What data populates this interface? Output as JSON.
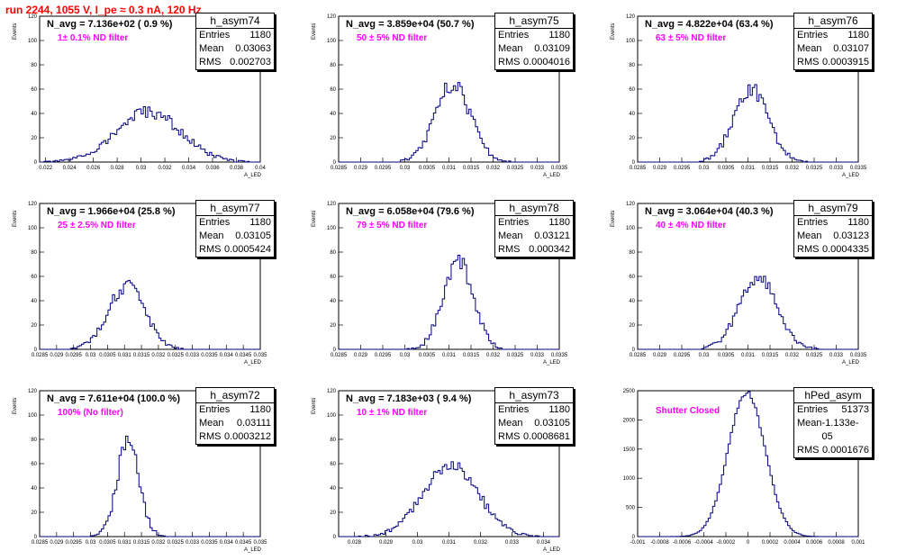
{
  "page_title": "run 2244,  1055 V, I_pe ≈ 0.3 nA, 120 Hz",
  "colors": {
    "hist": "#000080",
    "title": "#ff0000",
    "filter": "#ff00ff"
  },
  "chart_data": [
    {
      "type": "histogram",
      "name": "h_asym74",
      "navg": "N_avg = 7.136e+02 ( 0.9 %)",
      "filter": "1± 0.1% ND filter",
      "stats": {
        "Entries": "1180",
        "Mean": "0.03063",
        "RMS": "0.002703"
      },
      "xlabel": "A_LED",
      "ylabel": "Events",
      "xlim": [
        0.0215,
        0.04
      ],
      "ylim": [
        0,
        120
      ],
      "xticks": [
        "0.022",
        "0.024",
        "0.026",
        "0.028",
        "0.03",
        "0.032",
        "0.034",
        "0.036",
        "0.038",
        "0.04"
      ],
      "xtick_values": [
        0.022,
        0.024,
        0.026,
        0.028,
        0.03,
        0.032,
        0.034,
        0.036,
        0.038,
        0.04
      ],
      "yticks": [
        0,
        20,
        40,
        60,
        80,
        100,
        120
      ],
      "mean": 0.03063,
      "rms": 0.002703,
      "peak": 41
    },
    {
      "type": "histogram",
      "name": "h_asym75",
      "navg": "N_avg = 3.859e+04 (50.7 %)",
      "filter": "50 ± 5% ND filter",
      "stats": {
        "Entries": "1180",
        "Mean": "0.03109",
        "RMS": "0.0004016"
      },
      "xlabel": "A_LED",
      "ylabel": "Events",
      "xlim": [
        0.0285,
        0.0335
      ],
      "ylim": [
        0,
        120
      ],
      "xticks": [
        "0.0285",
        "0.029",
        "0.0295",
        "0.03",
        "0.0305",
        "0.031",
        "0.0315",
        "0.032",
        "0.0325",
        "0.033",
        "0.0335"
      ],
      "xtick_values": [
        0.0285,
        0.029,
        0.0295,
        0.03,
        0.0305,
        0.031,
        0.0315,
        0.032,
        0.0325,
        0.033,
        0.0335
      ],
      "yticks": [
        0,
        20,
        40,
        60,
        80,
        100,
        120
      ],
      "mean": 0.03109,
      "rms": 0.0004016,
      "peak": 64
    },
    {
      "type": "histogram",
      "name": "h_asym76",
      "navg": "N_avg = 4.822e+04 (63.4 %)",
      "filter": "63 ± 5% ND filter",
      "stats": {
        "Entries": "1180",
        "Mean": "0.03107",
        "RMS": "0.0003915"
      },
      "xlabel": "A_LED",
      "ylabel": "Events",
      "xlim": [
        0.0285,
        0.0335
      ],
      "ylim": [
        0,
        120
      ],
      "xticks": [
        "0.0285",
        "0.029",
        "0.0295",
        "0.03",
        "0.0305",
        "0.031",
        "0.0315",
        "0.032",
        "0.0325",
        "0.033",
        "0.0335"
      ],
      "xtick_values": [
        0.0285,
        0.029,
        0.0295,
        0.03,
        0.0305,
        0.031,
        0.0315,
        0.032,
        0.0325,
        0.033,
        0.0335
      ],
      "yticks": [
        0,
        20,
        40,
        60,
        80,
        100,
        120
      ],
      "mean": 0.03107,
      "rms": 0.0003915,
      "peak": 60
    },
    {
      "type": "histogram",
      "name": "h_asym77",
      "navg": "N_avg = 1.966e+04 (25.8 %)",
      "filter": "25 ± 2.5% ND filter",
      "stats": {
        "Entries": "1180",
        "Mean": "0.03105",
        "RMS": "0.0005424"
      },
      "xlabel": "A_LED",
      "ylabel": "Events",
      "xlim": [
        0.0285,
        0.035
      ],
      "ylim": [
        0,
        120
      ],
      "xticks": [
        "0.0285",
        "0.029",
        "0.0295",
        "0.03",
        "0.0305",
        "0.031",
        "0.0315",
        "0.032",
        "0.0325",
        "0.033",
        "0.0335",
        "0.034",
        "0.0345",
        "0.035"
      ],
      "xtick_values": [
        0.0285,
        0.029,
        0.0295,
        0.03,
        0.0305,
        0.031,
        0.0315,
        0.032,
        0.0325,
        0.033,
        0.0335,
        0.034,
        0.0345,
        0.035
      ],
      "yticks": [
        0,
        20,
        40,
        60,
        80,
        100,
        120
      ],
      "mean": 0.03105,
      "rms": 0.0005424,
      "peak": 52
    },
    {
      "type": "histogram",
      "name": "h_asym78",
      "navg": "N_avg = 6.058e+04 (79.6 %)",
      "filter": "79 ± 5% ND filter",
      "stats": {
        "Entries": "1180",
        "Mean": "0.03121",
        "RMS": "0.000342"
      },
      "xlabel": "A_LED",
      "ylabel": "Events",
      "xlim": [
        0.0285,
        0.0335
      ],
      "ylim": [
        0,
        120
      ],
      "xticks": [
        "0.0285",
        "0.029",
        "0.0295",
        "0.03",
        "0.0305",
        "0.031",
        "0.0315",
        "0.032",
        "0.0325",
        "0.033",
        "0.0335"
      ],
      "xtick_values": [
        0.0285,
        0.029,
        0.0295,
        0.03,
        0.0305,
        0.031,
        0.0315,
        0.032,
        0.0325,
        0.033,
        0.0335
      ],
      "yticks": [
        0,
        20,
        40,
        60,
        80,
        100,
        120
      ],
      "mean": 0.03121,
      "rms": 0.000342,
      "peak": 73
    },
    {
      "type": "histogram",
      "name": "h_asym79",
      "navg": "N_avg = 3.064e+04 (40.3 %)",
      "filter": "40 ± 4% ND filter",
      "stats": {
        "Entries": "1180",
        "Mean": "0.03123",
        "RMS": "0.0004335"
      },
      "xlabel": "A_LED",
      "ylabel": "Events",
      "xlim": [
        0.0285,
        0.0335
      ],
      "ylim": [
        0,
        120
      ],
      "xticks": [
        "0.0285",
        "0.029",
        "0.0295",
        "0.03",
        "0.0305",
        "0.031",
        "0.0315",
        "0.032",
        "0.0325",
        "0.033",
        "0.0335"
      ],
      "xtick_values": [
        0.0285,
        0.029,
        0.0295,
        0.03,
        0.0305,
        0.031,
        0.0315,
        0.032,
        0.0325,
        0.033,
        0.0335
      ],
      "yticks": [
        0,
        20,
        40,
        60,
        80,
        100,
        120
      ],
      "mean": 0.03123,
      "rms": 0.0004335,
      "peak": 58
    },
    {
      "type": "histogram",
      "name": "h_asym72",
      "navg": "N_avg = 7.611e+04 (100.0 %)",
      "filter": "100% (No filter)",
      "stats": {
        "Entries": "1180",
        "Mean": "0.03111",
        "RMS": "0.0003212"
      },
      "xlabel": "A_LED",
      "ylabel": "Events",
      "xlim": [
        0.0285,
        0.035
      ],
      "ylim": [
        0,
        120
      ],
      "xticks": [
        "0.0285",
        "0.029",
        "0.0295",
        "0.03",
        "0.0305",
        "0.031",
        "0.0315",
        "0.032",
        "0.0325",
        "0.033",
        "0.0335",
        "0.034",
        "0.0345",
        "0.035"
      ],
      "xtick_values": [
        0.0285,
        0.029,
        0.0295,
        0.03,
        0.0305,
        0.031,
        0.0315,
        0.032,
        0.0325,
        0.033,
        0.0335,
        0.034,
        0.0345,
        0.035
      ],
      "yticks": [
        0,
        20,
        40,
        60,
        80,
        100,
        120
      ],
      "mean": 0.03111,
      "rms": 0.0003212,
      "peak": 81
    },
    {
      "type": "histogram",
      "name": "h_asym73",
      "navg": "N_avg = 7.183e+03 ( 9.4 %)",
      "filter": "10 ± 1% ND filter",
      "stats": {
        "Entries": "1180",
        "Mean": "0.03105",
        "RMS": "0.0008681"
      },
      "xlabel": "A_LED",
      "ylabel": "Events",
      "xlim": [
        0.0275,
        0.0345
      ],
      "ylim": [
        0,
        120
      ],
      "xticks": [
        "0.028",
        "0.029",
        "0.03",
        "0.031",
        "0.032",
        "0.033",
        "0.034"
      ],
      "xtick_values": [
        0.028,
        0.029,
        0.03,
        0.031,
        0.032,
        0.033,
        0.034
      ],
      "yticks": [
        0,
        20,
        40,
        60,
        80,
        100,
        120
      ],
      "mean": 0.03105,
      "rms": 0.0008681,
      "peak": 60
    },
    {
      "type": "histogram",
      "name": "hPed_asym",
      "navg": "",
      "filter": "Shutter Closed",
      "stats": {
        "Entries": "51373",
        "Mean": "-1.133e-05",
        "RMS": "0.0001676"
      },
      "xlabel": "",
      "ylabel": "",
      "xlim": [
        -0.001,
        0.001
      ],
      "ylim": [
        0,
        2500
      ],
      "xticks": [
        "-0.001",
        "-0.0008",
        "-0.0006",
        "-0.0004",
        "-0.0002",
        "0",
        "0.0002",
        "0.0004",
        "0.0006",
        "0.0008",
        "0.001"
      ],
      "xtick_values": [
        -0.001,
        -0.0008,
        -0.0006,
        -0.0004,
        -0.0002,
        0,
        0.0002,
        0.0004,
        0.0006,
        0.0008,
        0.001
      ],
      "yticks": [
        0,
        500,
        1000,
        1500,
        2000,
        2500
      ],
      "mean": -1.133e-05,
      "rms": 0.0001676,
      "peak": 2470
    }
  ]
}
